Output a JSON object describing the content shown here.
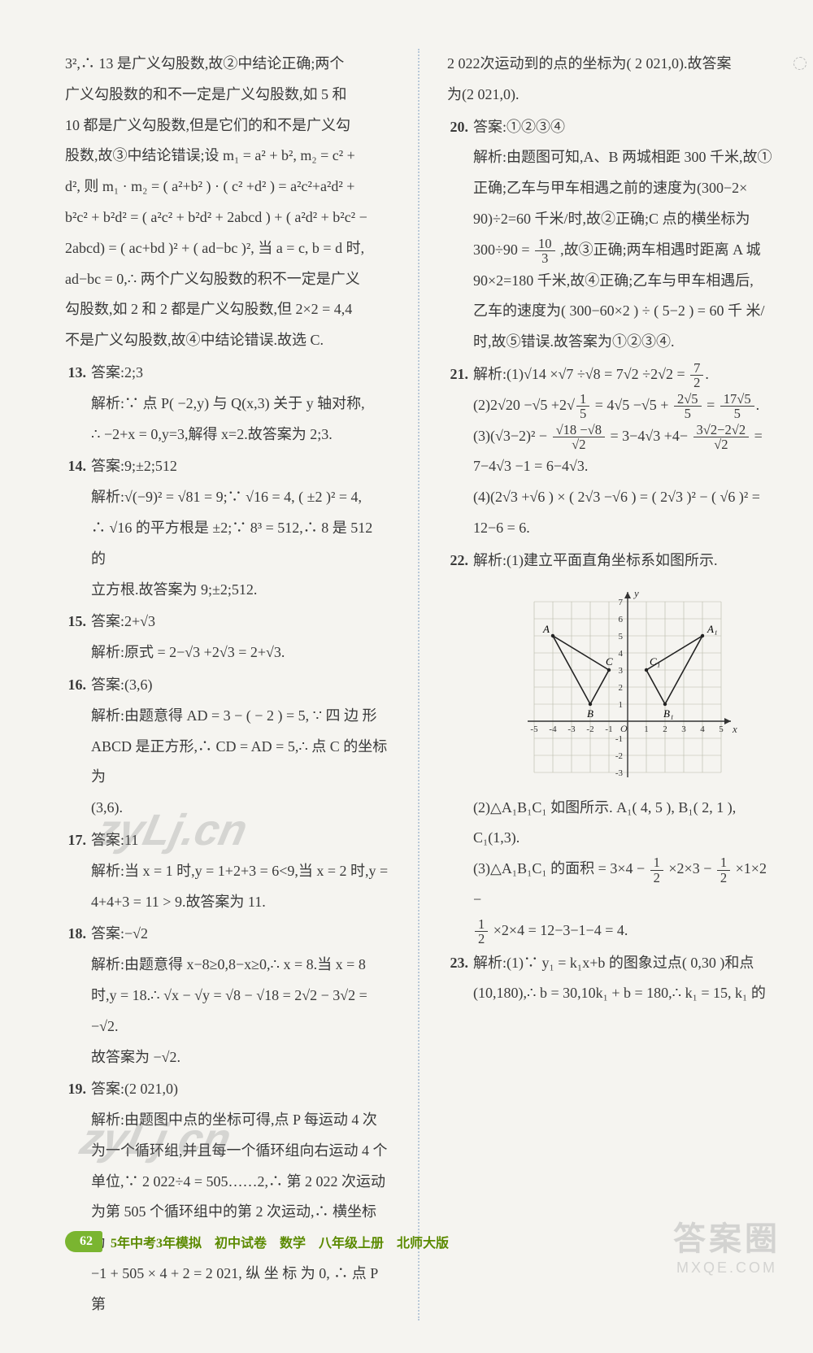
{
  "left": {
    "pre": [
      "3²,∴ 13 是广义勾股数,故②中结论正确;两个",
      "广义勾股数的和不一定是广义勾股数,如 5 和",
      "10 都是广义勾股数,但是它们的和不是广义勾",
      "股数,故③中结论错误;设 m₁ = a² + b², m₂ = c² +",
      "d², 则 m₁ · m₂ = ( a²+b² ) · ( c² +d² ) = a²c²+a²d² +",
      "b²c² + b²d² = ( a²c² + b²d² + 2abcd ) + ( a²d² + b²c² −",
      "2abcd) = ( ac+bd )² + ( ad−bc )², 当 a = c, b = d 时,",
      "ad−bc = 0,∴ 两个广义勾股数的积不一定是广义",
      "勾股数,如 2 和 2 都是广义勾股数,但 2×2 = 4,4",
      "不是广义勾股数,故④中结论错误.故选 C."
    ],
    "items": [
      {
        "n": "13.",
        "lines": [
          "答案:2;3",
          "解析:∵ 点 P( −2,y) 与 Q(x,3) 关于 y 轴对称,",
          "∴ −2+x = 0,y=3,解得 x=2.故答案为 2;3."
        ]
      },
      {
        "n": "14.",
        "lines": [
          "答案:9;±2;512",
          "解析:√(−9)² = √81 = 9;∵ √16 = 4, ( ±2 )² = 4,",
          "∴ √16 的平方根是 ±2;∵ 8³ = 512,∴ 8 是 512 的",
          "立方根.故答案为 9;±2;512."
        ]
      },
      {
        "n": "15.",
        "lines": [
          "答案:2+√3",
          "解析:原式 = 2−√3 +2√3 = 2+√3."
        ]
      },
      {
        "n": "16.",
        "lines": [
          "答案:(3,6)",
          "解析:由题意得 AD = 3 − ( − 2 ) = 5, ∵ 四 边 形",
          "ABCD 是正方形,∴ CD = AD = 5,∴ 点 C 的坐标为",
          "(3,6)."
        ]
      },
      {
        "n": "17.",
        "lines": [
          "答案:11",
          "解析:当 x = 1 时,y = 1+2+3 = 6<9,当 x = 2 时,y =",
          "4+4+3 = 11 > 9.故答案为 11."
        ]
      },
      {
        "n": "18.",
        "lines": [
          "答案:−√2",
          "解析:由题意得 x−8≥0,8−x≥0,∴ x = 8.当 x = 8",
          "时,y = 18.∴ √x − √y = √8 − √18 = 2√2 − 3√2 = −√2.",
          "故答案为 −√2."
        ]
      },
      {
        "n": "19.",
        "lines": [
          "答案:(2 021,0)",
          "解析:由题图中点的坐标可得,点 P 每运动 4 次",
          "为一个循环组,并且每一个循环组向右运动 4 个",
          "单位,∵ 2 022÷4 = 505……2,∴ 第 2 022 次运动",
          "为第 505 个循环组中的第 2 次运动,∴ 横坐标为",
          "−1 + 505 × 4 + 2 = 2 021, 纵 坐 标 为 0, ∴ 点 P 第"
        ]
      }
    ]
  },
  "right": {
    "pre": [
      "2 022次运动到的点的坐标为( 2 021,0).故答案",
      "为(2 021,0)."
    ],
    "q20": {
      "n": "20.",
      "ans": "答案:①②③④",
      "lines": [
        "解析:由题图可知,A、B 两城相距 300 千米,故①",
        "正确;乙车与甲车相遇之前的速度为(300−2×",
        "90)÷2=60 千米/时,故②正确;C 点的横坐标为"
      ],
      "frac_line_before": "300÷90 = ",
      "frac_n": "10",
      "frac_d": "3",
      "frac_line_after": ",故③正确;两车相遇时距离 A 城",
      "lines2": [
        "90×2=180 千米,故④正确;乙车与甲车相遇后,",
        "乙车的速度为( 300−60×2 ) ÷ ( 5−2 ) = 60 千 米/",
        "时,故⑤错误.故答案为①②③④."
      ]
    },
    "q21": {
      "n": "21.",
      "head": "解析:(1)√14 ×√7 ÷√8 = 7√2 ÷2√2 = ",
      "r1n": "7",
      "r1d": "2",
      "l2a": "(2)2√20 −√5 +2",
      "l2_in_n": "1",
      "l2_in_d": "5",
      "l2b": "= 4√5 −√5 +",
      "l2_mid_n": "2√5",
      "l2_mid_d": "5",
      "l2c": "=",
      "l2_r_n": "17√5",
      "l2_r_d": "5",
      "l3a": "(3)(√3−2)² −",
      "l3_f1n": "√18 −√8",
      "l3_f1d": "√2",
      "l3b": "= 3−4√3 +4−",
      "l3_f2n": "3√2−2√2",
      "l3_f2d": "√2",
      "l3c": "=",
      "l3_res": "7−4√3 −1 = 6−4√3.",
      "l4": "(4)(2√3 +√6 ) × ( 2√3 −√6 ) = ( 2√3 )² − ( √6 )² =",
      "l4b": "12−6 = 6."
    },
    "q22": {
      "n": "22.",
      "head": "解析:(1)建立平面直角坐标系如图所示.",
      "after1": "(2)△A₁B₁C₁ 如图所示. A₁( 4, 5 ), B₁( 2, 1 ),",
      "after1b": "C₁(1,3).",
      "calc_pre": "(3)△A₁B₁C₁ 的面积 = 3×4 −",
      "half_n": "1",
      "half_d": "2",
      "calc_mid": "×2×3 −",
      "calc_mid2": "×1×2 −",
      "calc_line2_pre": "",
      "calc_line2": "×2×4 = 12−3−1−4 = 4."
    },
    "q23": {
      "n": "23.",
      "lines": [
        "解析:(1)∵ y₁ = k₁x+b 的图象过点( 0,30 )和点",
        "(10,180),∴ b = 30,10k₁ + b = 180,∴ k₁ = 15, k₁ 的"
      ]
    }
  },
  "graph": {
    "xmin": -5,
    "xmax": 5,
    "ymin": -3,
    "ymax": 7,
    "xticks": [
      -5,
      -4,
      -3,
      -2,
      -1,
      1,
      2,
      3,
      4,
      5
    ],
    "yticks": [
      -3,
      -2,
      -1,
      1,
      2,
      3,
      4,
      5,
      6,
      7
    ],
    "axis_color": "#333333",
    "grid_color": "#b8b8a8",
    "curve_color": "#222222",
    "left_tri": {
      "A": [
        -4,
        5
      ],
      "B": [
        -2,
        1
      ],
      "C": [
        -1,
        3
      ]
    },
    "right_tri": {
      "A": [
        4,
        5
      ],
      "B": [
        2,
        1
      ],
      "C": [
        1,
        3
      ]
    },
    "labels": {
      "A": "A",
      "B": "B",
      "C": "C",
      "A1": "A₁",
      "B1": "B₁",
      "C1": "C₁",
      "O": "O",
      "x": "x",
      "y": "y"
    }
  },
  "footer": {
    "page": "62",
    "title": "5年中考3年模拟　初中试卷　数学　八年级上册　北师大版"
  },
  "watermark": "zyLj.cn",
  "stamp_big": "答案圈",
  "stamp_small": "MXQE.COM"
}
